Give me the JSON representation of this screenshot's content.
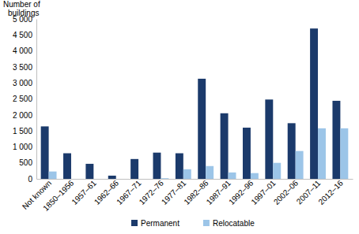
{
  "chart_data": {
    "type": "bar",
    "y_label": "Number of buildings",
    "categories": [
      "Not known",
      "1850–1956",
      "1957–61",
      "1962–66",
      "1967–71",
      "1972–76",
      "1977–81",
      "1982–86",
      "1987–91",
      "1992–96",
      "1997–01",
      "2002–06",
      "2007–11",
      "2012–16"
    ],
    "series": [
      {
        "name": "Permanent",
        "color": "#1b3a6b",
        "values": [
          1640,
          800,
          470,
          100,
          620,
          820,
          800,
          3130,
          2050,
          1600,
          2480,
          1740,
          4700,
          2440
        ]
      },
      {
        "name": "Relocatable",
        "color": "#9cc5e8",
        "values": [
          230,
          0,
          0,
          0,
          0,
          20,
          300,
          400,
          200,
          180,
          500,
          870,
          1580,
          1580
        ]
      }
    ],
    "ylim": [
      0,
      5000
    ],
    "yticks": [
      0,
      500,
      {
        "value": 1000,
        "label": "1 000"
      },
      {
        "value": 1500,
        "label": "1 500"
      },
      {
        "value": 2000,
        "label": "2 000"
      },
      {
        "value": 2500,
        "label": "2 500"
      },
      {
        "value": 3000,
        "label": "3 000"
      },
      {
        "value": 3500,
        "label": "3 500"
      },
      {
        "value": 4000,
        "label": "4 000"
      },
      {
        "value": 4500,
        "label": "4 500"
      },
      {
        "value": 5000,
        "label": "5 000"
      }
    ],
    "grid": false,
    "legend": "bottom"
  }
}
